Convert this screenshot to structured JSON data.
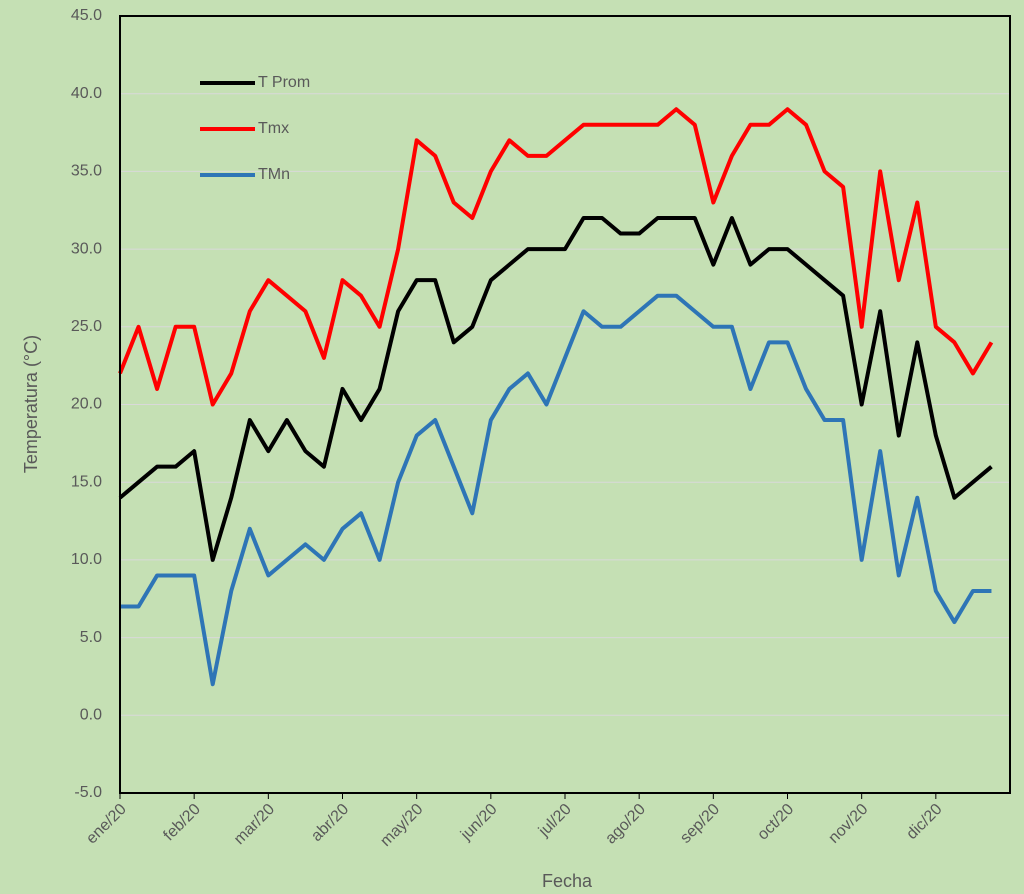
{
  "chart_data": {
    "type": "line",
    "x_label": "Fecha",
    "y_label": "Temperatura (°C)",
    "categories": [
      "ene/20",
      null,
      null,
      null,
      "feb/20",
      null,
      null,
      null,
      "mar/20",
      null,
      null,
      null,
      "abr/20",
      null,
      null,
      null,
      "may/20",
      null,
      null,
      null,
      "jun/20",
      null,
      null,
      null,
      "jul/20",
      null,
      null,
      null,
      "ago/20",
      null,
      null,
      null,
      "sep/20",
      null,
      null,
      null,
      "oct/20",
      null,
      null,
      null,
      "nov/20",
      null,
      null,
      null,
      "dic/20",
      null,
      null,
      null
    ],
    "series": [
      {
        "name": "T Prom",
        "color": "#000000",
        "values": [
          14,
          15,
          16,
          16,
          17,
          10,
          14,
          19,
          17,
          19,
          17,
          16,
          21,
          19,
          21,
          26,
          28,
          28,
          24,
          25,
          28,
          29,
          30,
          30,
          30,
          32,
          32,
          31,
          31,
          32,
          32,
          32,
          29,
          32,
          29,
          30,
          30,
          29,
          28,
          27,
          20,
          26,
          18,
          24,
          18,
          14,
          15,
          16
        ]
      },
      {
        "name": "Tmx",
        "color": "#ff0000",
        "values": [
          22,
          25,
          21,
          25,
          25,
          20,
          22,
          26,
          28,
          27,
          26,
          23,
          28,
          27,
          25,
          30,
          37,
          36,
          33,
          32,
          35,
          37,
          36,
          36,
          37,
          38,
          38,
          38,
          38,
          38,
          39,
          38,
          33,
          36,
          38,
          38,
          39,
          38,
          35,
          34,
          25,
          35,
          28,
          33,
          25,
          24,
          22,
          24
        ]
      },
      {
        "name": "TMn",
        "color": "#2e75b6",
        "values": [
          7,
          7,
          9,
          9,
          9,
          2,
          8,
          12,
          9,
          10,
          11,
          10,
          12,
          13,
          10,
          15,
          18,
          19,
          16,
          13,
          19,
          21,
          22,
          20,
          23,
          26,
          25,
          25,
          26,
          27,
          27,
          26,
          25,
          25,
          21,
          24,
          24,
          21,
          19,
          19,
          10,
          17,
          9,
          14,
          8,
          6,
          8,
          8
        ]
      }
    ],
    "ylim": [
      -5,
      45
    ],
    "yticks": [
      {
        "value": -5,
        "label": "-5.0"
      },
      {
        "value": 0,
        "label": "0.0"
      },
      {
        "value": 5,
        "label": "5.0"
      },
      {
        "value": 10,
        "label": "10.0"
      },
      {
        "value": 15,
        "label": "15.0"
      },
      {
        "value": 20,
        "label": "20.0"
      },
      {
        "value": 25,
        "label": "25.0"
      },
      {
        "value": 30,
        "label": "30.0"
      },
      {
        "value": 35,
        "label": "35.0"
      },
      {
        "value": 40,
        "label": "40.0"
      },
      {
        "value": 45,
        "label": "45.0"
      }
    ],
    "grid": true
  }
}
